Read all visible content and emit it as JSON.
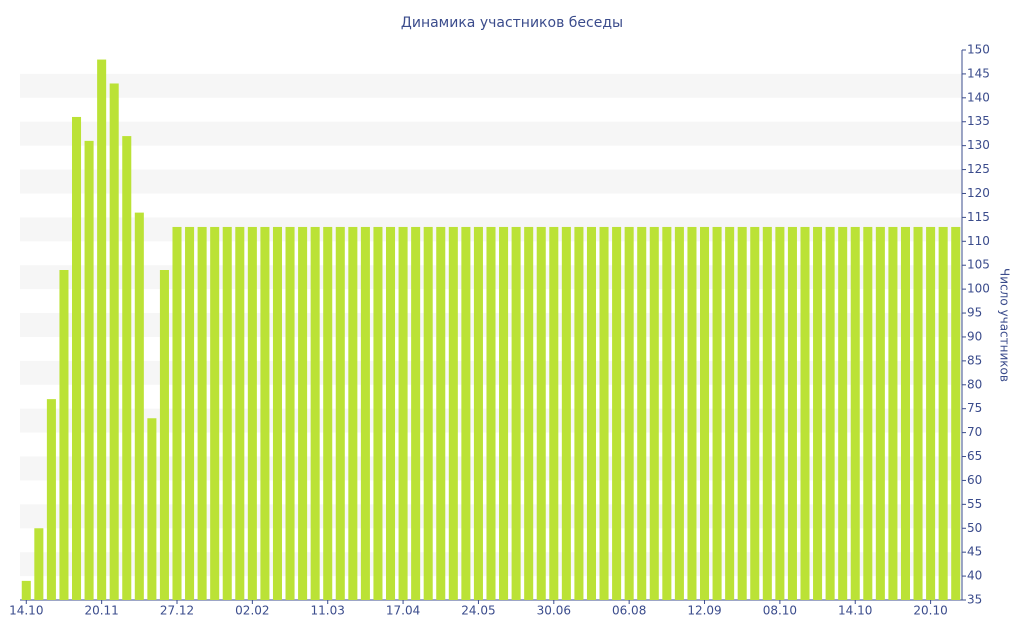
{
  "chart_data": {
    "type": "bar",
    "title": "Динамика участников беседы",
    "y_axis_label": "Число участников",
    "axis_side": "right",
    "color": "#bbe236",
    "grid": true,
    "categories": [
      "14.10",
      null,
      null,
      null,
      null,
      null,
      "20.11",
      null,
      null,
      null,
      null,
      null,
      "27.12",
      null,
      null,
      null,
      null,
      null,
      "02.02",
      null,
      null,
      null,
      null,
      null,
      "11.03",
      null,
      null,
      null,
      null,
      null,
      "17.04",
      null,
      null,
      null,
      null,
      null,
      "24.05",
      null,
      null,
      null,
      null,
      null,
      "30.06",
      null,
      null,
      null,
      null,
      null,
      "06.08",
      null,
      null,
      null,
      null,
      null,
      "12.09",
      null,
      null,
      null,
      null,
      null,
      "08.10",
      null,
      null,
      null,
      null,
      null,
      "14.10",
      null,
      null,
      null,
      null,
      null,
      "20.10",
      null,
      null
    ],
    "values": [
      39,
      50,
      77,
      104,
      136,
      131,
      148,
      143,
      132,
      116,
      73,
      104,
      113,
      113,
      113,
      113,
      113,
      113,
      113,
      113,
      113,
      113,
      113,
      113,
      113,
      113,
      113,
      113,
      113,
      113,
      113,
      113,
      113,
      113,
      113,
      113,
      113,
      113,
      113,
      113,
      113,
      113,
      113,
      113,
      113,
      113,
      113,
      113,
      113,
      113,
      113,
      113,
      113,
      113,
      113,
      113,
      113,
      113,
      113,
      113,
      113,
      113,
      113,
      113,
      113,
      113,
      113,
      113,
      113,
      113,
      113,
      113,
      113,
      113,
      113
    ],
    "ylim": [
      35,
      150
    ],
    "yticks": [
      35,
      40,
      45,
      50,
      55,
      60,
      65,
      70,
      75,
      80,
      85,
      90,
      95,
      100,
      105,
      110,
      115,
      120,
      125,
      130,
      135,
      140,
      145,
      150
    ]
  }
}
